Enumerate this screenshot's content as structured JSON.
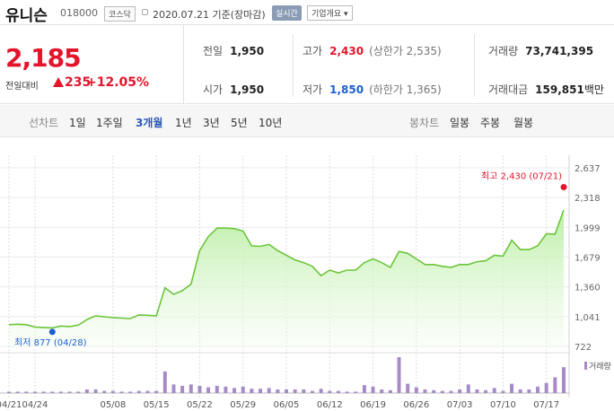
{
  "header": {
    "name": "유니슨",
    "code": "018000",
    "market": "코스닥",
    "date": "2020.07.21 기준(장마감)",
    "realtime_btn": "실시간",
    "company_btn": "기업개요 ▾"
  },
  "price": {
    "current": "2,185",
    "prev_label": "전일대비",
    "diff": "235",
    "pct": "+12.05%"
  },
  "stats": {
    "prev_close": {
      "label": "전일",
      "value": "1,950"
    },
    "open": {
      "label": "시가",
      "value": "1,950"
    },
    "high": {
      "label": "고가",
      "value": "2,430",
      "sub": "(상한가 2,535)"
    },
    "low": {
      "label": "저가",
      "value": "1,850",
      "sub": "(하한가 1,365)"
    },
    "volume": {
      "label": "거래량",
      "value": "73,741,395"
    },
    "amount": {
      "label": "거래대금",
      "value": "159,851",
      "unit": "백만"
    }
  },
  "periods": {
    "line_label": "선차트",
    "line_items": [
      "1일",
      "1주일",
      "3개월",
      "1년",
      "3년",
      "5년",
      "10년"
    ],
    "active": "3개월",
    "candle_label": "봉차트",
    "candle_items": [
      "일봉",
      "주봉",
      "월봉"
    ]
  },
  "colors": {
    "up": "#e4152b",
    "down": "#1a5fd0",
    "line": "#6cc53a",
    "volume": "#a78bc9"
  },
  "chart_data": {
    "type": "area",
    "y_ticks": [
      "2,637",
      "2,318",
      "1,999",
      "1,679",
      "1,360",
      "1,041",
      "722"
    ],
    "ylim": [
      722,
      2637
    ],
    "x_labels": [
      "04/21",
      "04/24",
      "05/08",
      "05/15",
      "05/22",
      "05/29",
      "06/05",
      "06/12",
      "06/19",
      "06/26",
      "07/03",
      "07/10",
      "07/17"
    ],
    "x_label_index": [
      0,
      3,
      12,
      17,
      22,
      27,
      32,
      37,
      42,
      47,
      52,
      57,
      62
    ],
    "series": [
      {
        "values": [
          955,
          960,
          955,
          930,
          925,
          920,
          940,
          935,
          950,
          1010,
          1050,
          1040,
          1030,
          1025,
          1020,
          1060,
          1055,
          1050,
          1350,
          1280,
          1320,
          1390,
          1750,
          1900,
          1990,
          1990,
          1985,
          1960,
          1800,
          1795,
          1815,
          1750,
          1700,
          1650,
          1620,
          1580,
          1480,
          1540,
          1510,
          1540,
          1540,
          1620,
          1660,
          1620,
          1570,
          1740,
          1720,
          1660,
          1600,
          1600,
          1580,
          1570,
          1600,
          1600,
          1630,
          1640,
          1700,
          1690,
          1860,
          1760,
          1760,
          1800,
          1930,
          1925,
          2185
        ]
      }
    ],
    "volume_label": "거래량",
    "volume": [
      2,
      2,
      2,
      2,
      2,
      2,
      2,
      2,
      2,
      5,
      5,
      3,
      3,
      2,
      2,
      3,
      3,
      3,
      30,
      12,
      10,
      12,
      10,
      8,
      10,
      9,
      7,
      9,
      6,
      6,
      7,
      5,
      5,
      5,
      5,
      3,
      6,
      3,
      3,
      2,
      2,
      11,
      9,
      5,
      4,
      50,
      13,
      8,
      5,
      4,
      3,
      3,
      5,
      12,
      5,
      4,
      7,
      3,
      13,
      5,
      5,
      9,
      14,
      22,
      36
    ],
    "high_label": "최고 2,430 (07/21)",
    "high_index": 64,
    "high_value": 2430,
    "low_label": "최저 877 (04/28)",
    "low_index": 5,
    "low_value": 877
  }
}
